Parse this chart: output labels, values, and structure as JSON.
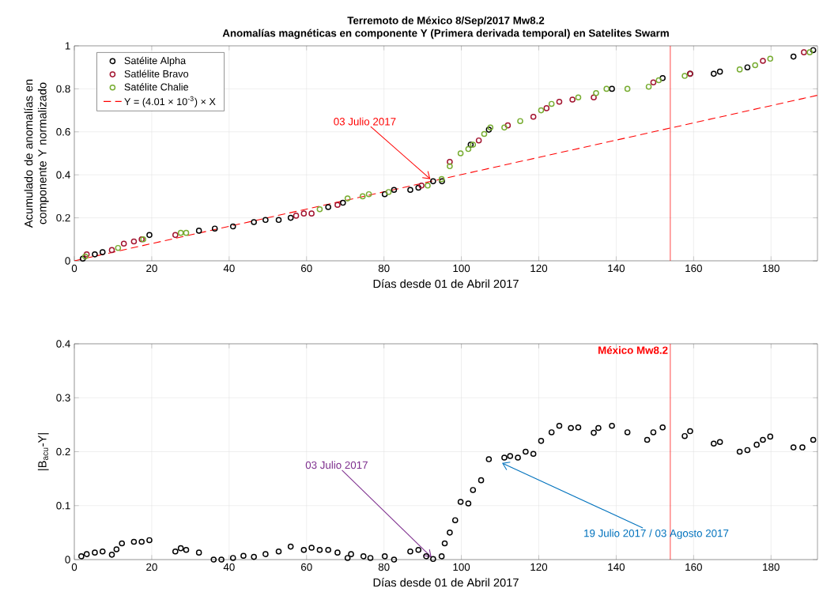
{
  "chart_data": [
    {
      "type": "scatter",
      "title": "Terremoto de México 8/Sep/2017 Mw8.2",
      "subtitle": "Anomalías magnéticas en componente Y (Primera derivada temporal) en Satelites Swarm",
      "xlabel": "Días desde 01 de Abril 2017",
      "ylabel": "Acumulado de anomalías en componente Y normalizado",
      "xlim": [
        0,
        192
      ],
      "ylim": [
        0,
        1
      ],
      "xticks": [
        0,
        20,
        40,
        60,
        80,
        100,
        120,
        140,
        160,
        180
      ],
      "yticks": [
        0,
        0.2,
        0.4,
        0.6,
        0.8,
        1
      ],
      "grid": true,
      "legend": "top left",
      "marker": "circle",
      "series": [
        {
          "name": "Satélite Alpha",
          "color": "#000000",
          "x": [
            2.2,
            5.3,
            7.3,
            19.4,
            32.2,
            36.3,
            41,
            46.4,
            49.4,
            52.8,
            55.9,
            65.6,
            69.4,
            80.2,
            82.6,
            86.8,
            88.9,
            92.7,
            95,
            102.4,
            107.1,
            138.9,
            152,
            159.1,
            165.2,
            166.8,
            173.9,
            185.8,
            190.9
          ],
          "values": [
            0.01,
            0.03,
            0.04,
            0.12,
            0.14,
            0.15,
            0.16,
            0.18,
            0.19,
            0.19,
            0.2,
            0.25,
            0.27,
            0.31,
            0.33,
            0.33,
            0.34,
            0.37,
            0.37,
            0.54,
            0.61,
            0.8,
            0.85,
            0.87,
            0.87,
            0.88,
            0.9,
            0.95,
            0.98
          ]
        },
        {
          "name": "Satlélite Bravo",
          "color": "#a2142f",
          "x": [
            3.2,
            9.7,
            12.8,
            15.4,
            17.4,
            26.1,
            57.3,
            59.3,
            61.3,
            68,
            89.7,
            97,
            104.5,
            112,
            118.6,
            122,
            125.3,
            128.7,
            134.2,
            149.6,
            159.1,
            177.9,
            188.5
          ],
          "values": [
            0.03,
            0.05,
            0.08,
            0.09,
            0.1,
            0.12,
            0.21,
            0.22,
            0.22,
            0.26,
            0.35,
            0.46,
            0.56,
            0.63,
            0.67,
            0.71,
            0.74,
            0.75,
            0.76,
            0.83,
            0.87,
            0.93,
            0.97
          ]
        },
        {
          "name": "Satélite Chalie",
          "color": "#77ac30",
          "x": [
            2.8,
            11.3,
            17.8,
            27.5,
            28.9,
            63.4,
            70.6,
            74.5,
            76.1,
            81.2,
            91.3,
            94.9,
            97,
            99.8,
            101.8,
            103,
            105.9,
            107.5,
            111.1,
            115.2,
            120.6,
            123.3,
            130.2,
            134.8,
            137.5,
            142.9,
            148.4,
            151,
            157.7,
            171.9,
            175.9,
            179.8,
            190
          ],
          "values": [
            0.02,
            0.06,
            0.1,
            0.13,
            0.13,
            0.24,
            0.29,
            0.3,
            0.31,
            0.32,
            0.35,
            0.38,
            0.44,
            0.5,
            0.52,
            0.54,
            0.59,
            0.62,
            0.62,
            0.65,
            0.7,
            0.73,
            0.76,
            0.78,
            0.8,
            0.8,
            0.81,
            0.84,
            0.86,
            0.89,
            0.91,
            0.94,
            0.97
          ]
        },
        {
          "name": "Y = (4.01 × 10$^{-3}$) × X",
          "type": "line",
          "color": "#ff0000",
          "line_style": "dashed",
          "marker": "none",
          "x": [
            0,
            192
          ],
          "values": [
            0,
            0.77
          ]
        }
      ],
      "ref_lines": [
        {
          "axis": "x",
          "value": 154,
          "color": "#ff0000"
        }
      ],
      "annotations": [
        {
          "text": "03 Julio 2017",
          "x": 92,
          "y": 0.38
        }
      ]
    },
    {
      "type": "scatter",
      "xlabel": "Días desde 01 de Abril 2017",
      "ylabel": "|B$_{acu}$-Y|",
      "xlim": [
        0,
        192
      ],
      "ylim": [
        0,
        0.4
      ],
      "xticks": [
        0,
        20,
        40,
        60,
        80,
        100,
        120,
        140,
        160,
        180
      ],
      "yticks": [
        0,
        0.1,
        0.2,
        0.3,
        0.4
      ],
      "grid": true,
      "marker": "circle",
      "series": [
        {
          "color": "#000000",
          "x": [
            1.8,
            3.2,
            5.3,
            7.3,
            9.7,
            10.9,
            12.3,
            15.4,
            17.4,
            19.4,
            26.1,
            27.5,
            28.9,
            32.2,
            36,
            38,
            41,
            43.7,
            46.4,
            49.4,
            52.8,
            55.9,
            59.3,
            61.3,
            63.4,
            65.6,
            68,
            70.6,
            71.5,
            74.7,
            76.5,
            80.2,
            82.6,
            86.8,
            88.9,
            90.9,
            92.7,
            94.9,
            95.7,
            97,
            98.4,
            99.8,
            101.8,
            103,
            105.1,
            107.1,
            111.1,
            112.6,
            114.6,
            116.6,
            118.6,
            120.6,
            123.3,
            125.3,
            128.3,
            130.2,
            134.2,
            135.4,
            138.9,
            142.9,
            148,
            149.6,
            152,
            157.7,
            159.1,
            165.2,
            166.8,
            171.9,
            173.9,
            176.3,
            177.9,
            179.8,
            185.8,
            188.1,
            190.9
          ],
          "values": [
            0.006,
            0.01,
            0.013,
            0.015,
            0.009,
            0.019,
            0.03,
            0.033,
            0.033,
            0.036,
            0.015,
            0.021,
            0.018,
            0.013,
            0,
            0,
            0.003,
            0.007,
            0.005,
            0.01,
            0.015,
            0.024,
            0.018,
            0.022,
            0.018,
            0.018,
            0.013,
            0.003,
            0.01,
            0.006,
            0.003,
            0.006,
            0,
            0.015,
            0.018,
            0.006,
            0.001,
            0.006,
            0.03,
            0.05,
            0.073,
            0.107,
            0.104,
            0.129,
            0.147,
            0.186,
            0.189,
            0.192,
            0.189,
            0.2,
            0.196,
            0.22,
            0.236,
            0.248,
            0.244,
            0.245,
            0.235,
            0.244,
            0.248,
            0.236,
            0.222,
            0.236,
            0.245,
            0.229,
            0.238,
            0.215,
            0.218,
            0.2,
            0.203,
            0.213,
            0.222,
            0.228,
            0.208,
            0.208,
            0.222
          ]
        }
      ],
      "ref_lines": [
        {
          "axis": "x",
          "value": 154,
          "color": "#ff0000",
          "label": "México Mw8.2"
        }
      ],
      "annotations": [
        {
          "text": "03 Julio 2017",
          "x": 92.3,
          "y": 0.004
        },
        {
          "text": "19 Julio 2017 / 03 Agosto 2017",
          "x": 110.5,
          "y": 0.179
        }
      ]
    }
  ]
}
